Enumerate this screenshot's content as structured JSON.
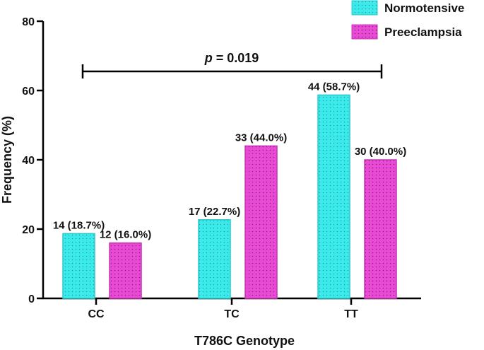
{
  "chart_data": {
    "type": "bar",
    "categories": [
      "CC",
      "TC",
      "TT"
    ],
    "series": [
      {
        "name": "Normotensive",
        "values": [
          18.7,
          22.7,
          58.7
        ],
        "labels": [
          "14 (18.7%)",
          "17 (22.7%)",
          "44 (58.7%)"
        ],
        "color": "#3BEBEB"
      },
      {
        "name": "Preeclampsia",
        "values": [
          16.0,
          44.0,
          40.0
        ],
        "labels": [
          "12 (16.0%)",
          "33 (44.0%)",
          "30 (40.0%)"
        ],
        "color": "#E84AD4"
      }
    ],
    "title": "",
    "xlabel": "T786C Genotype",
    "ylabel": "Frequency (%)",
    "ylim": [
      0,
      80
    ],
    "yticks": [
      0,
      20,
      40,
      60,
      80
    ],
    "legend": "top-right",
    "annotation": {
      "p_symbol": "p",
      "p_text": " = 0.019",
      "spans": [
        "CC",
        "TT"
      ]
    }
  }
}
